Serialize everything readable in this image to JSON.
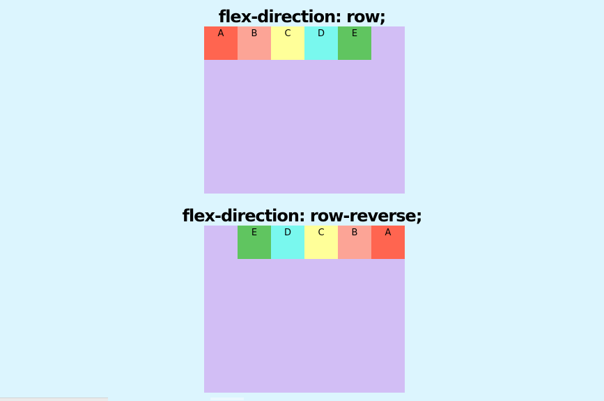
{
  "sections": [
    {
      "title": "flex-direction: row;",
      "direction": "row",
      "items": [
        {
          "label": "A",
          "color": "#ff6550"
        },
        {
          "label": "B",
          "color": "#fca496"
        },
        {
          "label": "C",
          "color": "#ffff99"
        },
        {
          "label": "D",
          "color": "#79f8ee"
        },
        {
          "label": "E",
          "color": "#60c560"
        }
      ]
    },
    {
      "title": "flex-direction: row-reverse;",
      "direction": "row-reverse",
      "items": [
        {
          "label": "A",
          "color": "#ff6550"
        },
        {
          "label": "B",
          "color": "#fca496"
        },
        {
          "label": "C",
          "color": "#ffff99"
        },
        {
          "label": "D",
          "color": "#79f8ee"
        },
        {
          "label": "E",
          "color": "#60c560"
        }
      ]
    }
  ],
  "colors": {
    "page_background": "#dcf5fe",
    "container_background": "#d2bef5"
  }
}
